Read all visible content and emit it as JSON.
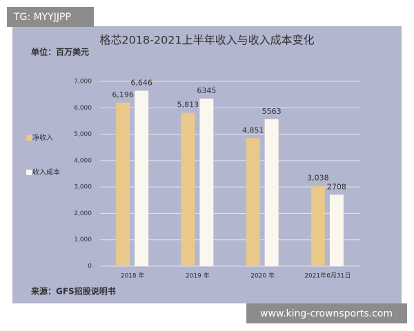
{
  "watermark_top": "TG: MYYJJPP",
  "watermark_bottom": "www.king-crownsports.com",
  "chart_data": {
    "type": "bar",
    "title": "格芯2018-2021上半年收入与收入成本变化",
    "subtitle": "单位：百万美元",
    "source": "来源：GFS招股说明书",
    "categories": [
      "2018 年",
      "2019 年",
      "2020 年",
      "2021年6月31日"
    ],
    "series": [
      {
        "name": "净收入",
        "color": "#e8c98a",
        "values": [
          6196,
          5813,
          4851,
          3038
        ],
        "value_labels": [
          "6,196",
          "5,813",
          "4,851",
          "3,038"
        ]
      },
      {
        "name": "收入成本",
        "color": "#fbf7ee",
        "values": [
          6646,
          6345,
          5563,
          2708
        ],
        "value_labels": [
          "6,646",
          "6345",
          "5563",
          "2708"
        ]
      }
    ],
    "ylim": [
      0,
      7000
    ],
    "yticks": [
      0,
      {
        "value": 1000,
        "label": "1,000"
      },
      {
        "value": 2000,
        "label": "2,000"
      },
      {
        "value": 3000,
        "label": "3,000"
      },
      {
        "value": 4000,
        "label": "4,000"
      },
      {
        "value": 5000,
        "label": "5,000"
      },
      {
        "value": 6000,
        "label": "6,000"
      },
      {
        "value": 7000,
        "label": "7,000"
      }
    ],
    "grid": true,
    "legend": "left"
  }
}
